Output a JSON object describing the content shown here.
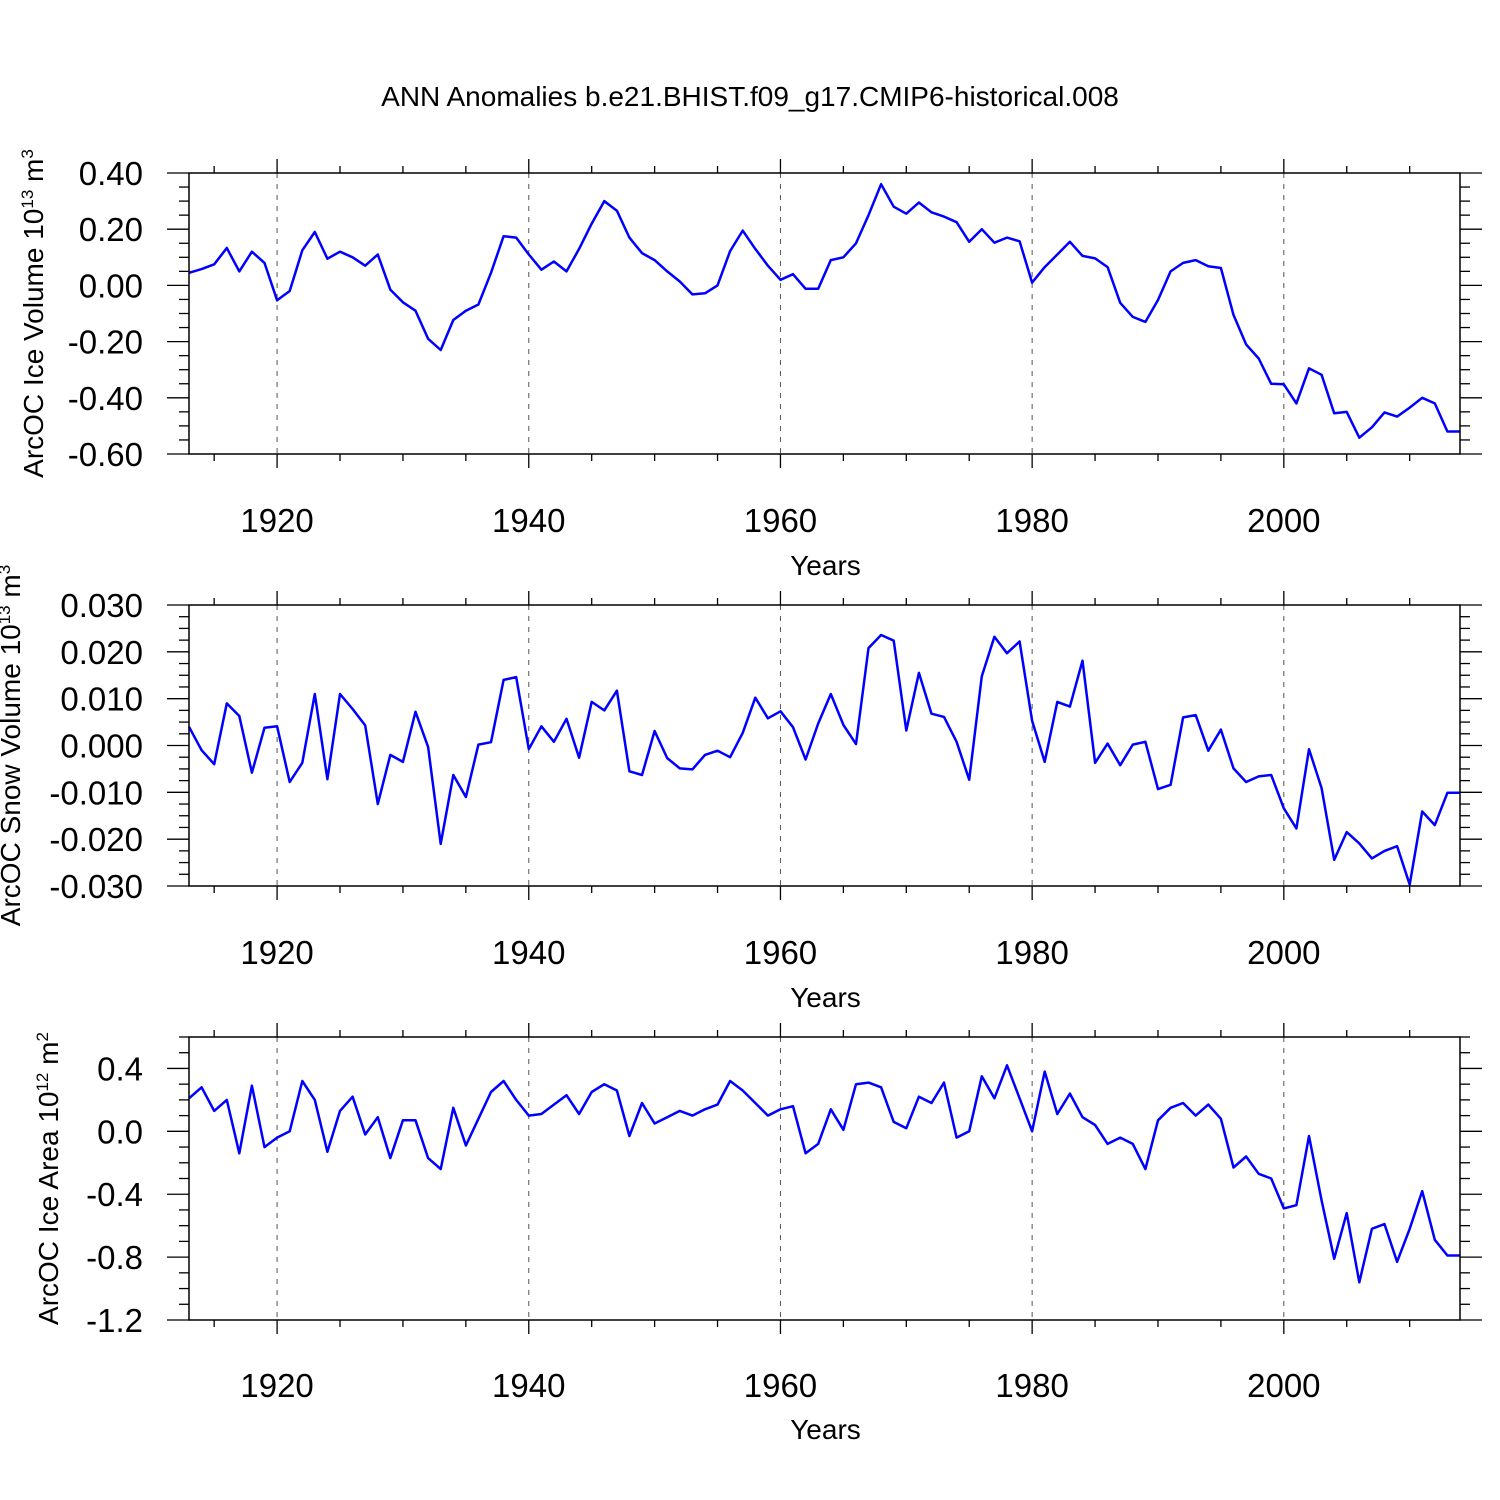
{
  "figure": {
    "title": "ANN Anomalies b.e21.BHIST.f09_g17.CMIP6-historical.008",
    "line_color": "#0000ff"
  },
  "chart_data": [
    {
      "type": "line",
      "name": "ice-volume",
      "ylabel": {
        "main": "ArcOC Ice Volume 10",
        "sup1": "13",
        "mid": " m",
        "sup2": "3"
      },
      "xlabel": "Years",
      "xlim": [
        1913,
        2014
      ],
      "x_ticks": [
        1920,
        1940,
        1960,
        1980,
        2000
      ],
      "x_tick_labels": [
        "1920",
        "1940",
        "1960",
        "1980",
        "2000"
      ],
      "ylim": [
        -0.6,
        0.4
      ],
      "y_ticks": [
        -0.6,
        -0.4,
        -0.2,
        0.0,
        0.2,
        0.4
      ],
      "y_tick_labels": [
        "-0.60",
        "-0.40",
        "-0.20",
        "0.00",
        "0.20",
        "0.40"
      ],
      "y_minor_step": 0.05,
      "x": [
        1913,
        1914,
        1915,
        1916,
        1917,
        1918,
        1919,
        1920,
        1921,
        1922,
        1923,
        1924,
        1925,
        1926,
        1927,
        1928,
        1929,
        1930,
        1931,
        1932,
        1933,
        1934,
        1935,
        1936,
        1937,
        1938,
        1939,
        1940,
        1941,
        1942,
        1943,
        1944,
        1945,
        1946,
        1947,
        1948,
        1949,
        1950,
        1951,
        1952,
        1953,
        1954,
        1955,
        1956,
        1957,
        1958,
        1959,
        1960,
        1961,
        1962,
        1963,
        1964,
        1965,
        1966,
        1967,
        1968,
        1969,
        1970,
        1971,
        1972,
        1973,
        1974,
        1975,
        1976,
        1977,
        1978,
        1979,
        1980,
        1981,
        1982,
        1983,
        1984,
        1985,
        1986,
        1987,
        1988,
        1989,
        1990,
        1991,
        1992,
        1993,
        1994,
        1995,
        1996,
        1997,
        1998,
        1999,
        2000,
        2001,
        2002,
        2003,
        2004,
        2005,
        2006,
        2007,
        2008,
        2009,
        2010,
        2011,
        2012,
        2013,
        2014
      ],
      "values": [
        0.045,
        0.058,
        0.075,
        0.133,
        0.05,
        0.12,
        0.08,
        -0.053,
        -0.02,
        0.125,
        0.19,
        0.095,
        0.12,
        0.1,
        0.07,
        0.11,
        -0.015,
        -0.06,
        -0.09,
        -0.19,
        -0.23,
        -0.123,
        -0.09,
        -0.068,
        0.045,
        0.175,
        0.17,
        0.11,
        0.056,
        0.085,
        0.05,
        0.13,
        0.22,
        0.3,
        0.266,
        0.17,
        0.115,
        0.09,
        0.05,
        0.014,
        -0.032,
        -0.028,
        0.0,
        0.122,
        0.195,
        0.13,
        0.07,
        0.02,
        0.04,
        -0.012,
        -0.012,
        0.09,
        0.1,
        0.15,
        0.25,
        0.36,
        0.28,
        0.255,
        0.295,
        0.26,
        0.245,
        0.225,
        0.155,
        0.2,
        0.152,
        0.17,
        0.157,
        0.01,
        0.065,
        0.11,
        0.155,
        0.105,
        0.096,
        0.065,
        -0.062,
        -0.112,
        -0.13,
        -0.052,
        0.05,
        0.08,
        0.09,
        0.068,
        0.062,
        -0.105,
        -0.21,
        -0.26,
        -0.35,
        -0.352,
        -0.42,
        -0.295,
        -0.318,
        -0.455,
        -0.45,
        -0.542,
        -0.505,
        -0.452,
        -0.467,
        -0.435,
        -0.4,
        -0.42,
        -0.52,
        -0.52
      ]
    },
    {
      "type": "line",
      "name": "snow-volume",
      "ylabel": {
        "main": "ArcOC Snow Volume 10",
        "sup1": "13",
        "mid": " m",
        "sup2": "3"
      },
      "xlabel": "Years",
      "xlim": [
        1913,
        2014
      ],
      "x_ticks": [
        1920,
        1940,
        1960,
        1980,
        2000
      ],
      "x_tick_labels": [
        "1920",
        "1940",
        "1960",
        "1980",
        "2000"
      ],
      "ylim": [
        -0.03,
        0.03
      ],
      "y_ticks": [
        -0.03,
        -0.02,
        -0.01,
        0.0,
        0.01,
        0.02,
        0.03
      ],
      "y_tick_labels": [
        "-0.030",
        "-0.020",
        "-0.010",
        "0.000",
        "0.010",
        "0.020",
        "0.030"
      ],
      "y_minor_step": 0.0025,
      "x": [
        1913,
        1914,
        1915,
        1916,
        1917,
        1918,
        1919,
        1920,
        1921,
        1922,
        1923,
        1924,
        1925,
        1926,
        1927,
        1928,
        1929,
        1930,
        1931,
        1932,
        1933,
        1934,
        1935,
        1936,
        1937,
        1938,
        1939,
        1940,
        1941,
        1942,
        1943,
        1944,
        1945,
        1946,
        1947,
        1948,
        1949,
        1950,
        1951,
        1952,
        1953,
        1954,
        1955,
        1956,
        1957,
        1958,
        1959,
        1960,
        1961,
        1962,
        1963,
        1964,
        1965,
        1966,
        1967,
        1968,
        1969,
        1970,
        1971,
        1972,
        1973,
        1974,
        1975,
        1976,
        1977,
        1978,
        1979,
        1980,
        1981,
        1982,
        1983,
        1984,
        1985,
        1986,
        1987,
        1988,
        1989,
        1990,
        1991,
        1992,
        1993,
        1994,
        1995,
        1996,
        1997,
        1998,
        1999,
        2000,
        2001,
        2002,
        2003,
        2004,
        2005,
        2006,
        2007,
        2008,
        2009,
        2010,
        2011,
        2012,
        2013,
        2014
      ],
      "values": [
        0.004,
        -0.001,
        -0.004,
        0.009,
        0.0063,
        -0.0058,
        0.0038,
        0.0041,
        -0.0078,
        -0.0037,
        0.011,
        -0.0072,
        0.011,
        0.0078,
        0.0043,
        -0.0125,
        -0.002,
        -0.0035,
        0.0072,
        -0.0003,
        -0.021,
        -0.0063,
        -0.011,
        0.0002,
        0.0007,
        0.014,
        0.0146,
        -0.0008,
        0.0041,
        0.0008,
        0.0057,
        -0.0026,
        0.0093,
        0.0075,
        0.0117,
        -0.0055,
        -0.0063,
        0.0031,
        -0.0027,
        -0.0049,
        -0.0051,
        -0.002,
        -0.0011,
        -0.0025,
        0.0027,
        0.0102,
        0.0058,
        0.0073,
        0.0039,
        -0.003,
        0.0047,
        0.011,
        0.0044,
        0.0003,
        0.0208,
        0.0236,
        0.0224,
        0.0032,
        0.0155,
        0.0068,
        0.0061,
        0.0008,
        -0.0073,
        0.0148,
        0.0232,
        0.0197,
        0.0222,
        0.0053,
        -0.0035,
        0.0093,
        0.0083,
        0.0181,
        -0.0037,
        0.0004,
        -0.0042,
        0.0002,
        0.0008,
        -0.0093,
        -0.0084,
        0.006,
        0.0065,
        -0.0011,
        0.0034,
        -0.0049,
        -0.0078,
        -0.0066,
        -0.0063,
        -0.0134,
        -0.0177,
        -0.0008,
        -0.0091,
        -0.0244,
        -0.0185,
        -0.0209,
        -0.0241,
        -0.0225,
        -0.0215,
        -0.0297,
        -0.0141,
        -0.017,
        -0.0101,
        -0.0101
      ]
    },
    {
      "type": "line",
      "name": "ice-area",
      "ylabel": {
        "main": "ArcOC Ice Area 10",
        "sup1": "12",
        "mid": " m",
        "sup2": "2"
      },
      "xlabel": "Years",
      "xlim": [
        1913,
        2014
      ],
      "x_ticks": [
        1920,
        1940,
        1960,
        1980,
        2000
      ],
      "x_tick_labels": [
        "1920",
        "1940",
        "1960",
        "1980",
        "2000"
      ],
      "ylim": [
        -1.2,
        0.6
      ],
      "y_ticks": [
        -1.2,
        -0.8,
        -0.4,
        0.0,
        0.4
      ],
      "y_tick_labels": [
        "-1.2",
        "-0.8",
        "-0.4",
        "0.0",
        "0.4"
      ],
      "y_minor_step": 0.1,
      "x": [
        1913,
        1914,
        1915,
        1916,
        1917,
        1918,
        1919,
        1920,
        1921,
        1922,
        1923,
        1924,
        1925,
        1926,
        1927,
        1928,
        1929,
        1930,
        1931,
        1932,
        1933,
        1934,
        1935,
        1936,
        1937,
        1938,
        1939,
        1940,
        1941,
        1942,
        1943,
        1944,
        1945,
        1946,
        1947,
        1948,
        1949,
        1950,
        1951,
        1952,
        1953,
        1954,
        1955,
        1956,
        1957,
        1958,
        1959,
        1960,
        1961,
        1962,
        1963,
        1964,
        1965,
        1966,
        1967,
        1968,
        1969,
        1970,
        1971,
        1972,
        1973,
        1974,
        1975,
        1976,
        1977,
        1978,
        1979,
        1980,
        1981,
        1982,
        1983,
        1984,
        1985,
        1986,
        1987,
        1988,
        1989,
        1990,
        1991,
        1992,
        1993,
        1994,
        1995,
        1996,
        1997,
        1998,
        1999,
        2000,
        2001,
        2002,
        2003,
        2004,
        2005,
        2006,
        2007,
        2008,
        2009,
        2010,
        2011,
        2012,
        2013,
        2014
      ],
      "values": [
        0.21,
        0.28,
        0.13,
        0.2,
        -0.14,
        0.29,
        -0.1,
        -0.04,
        0.0,
        0.32,
        0.2,
        -0.13,
        0.13,
        0.22,
        -0.02,
        0.09,
        -0.17,
        0.07,
        0.07,
        -0.17,
        -0.24,
        0.15,
        -0.09,
        0.08,
        0.25,
        0.32,
        0.2,
        0.1,
        0.11,
        0.17,
        0.23,
        0.11,
        0.25,
        0.3,
        0.26,
        -0.03,
        0.18,
        0.05,
        0.09,
        0.13,
        0.1,
        0.14,
        0.17,
        0.32,
        0.26,
        0.18,
        0.1,
        0.14,
        0.16,
        -0.14,
        -0.08,
        0.14,
        0.01,
        0.3,
        0.31,
        0.28,
        0.06,
        0.02,
        0.22,
        0.18,
        0.31,
        -0.04,
        0.0,
        0.35,
        0.21,
        0.42,
        0.21,
        0.0,
        0.38,
        0.11,
        0.24,
        0.09,
        0.04,
        -0.08,
        -0.04,
        -0.08,
        -0.24,
        0.07,
        0.15,
        0.18,
        0.1,
        0.17,
        0.08,
        -0.23,
        -0.16,
        -0.27,
        -0.3,
        -0.49,
        -0.47,
        -0.03,
        -0.44,
        -0.81,
        -0.52,
        -0.96,
        -0.62,
        -0.59,
        -0.83,
        -0.62,
        -0.38,
        -0.69,
        -0.79,
        -0.79
      ]
    }
  ]
}
